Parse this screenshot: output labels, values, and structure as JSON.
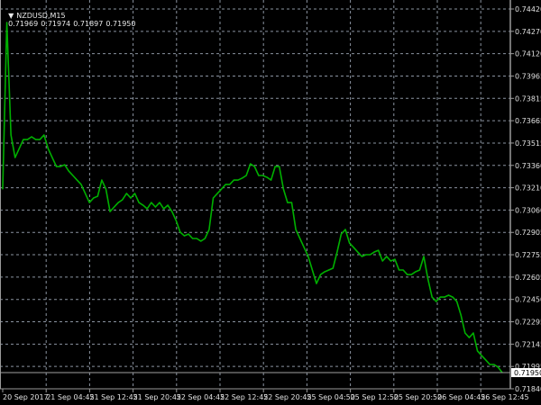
{
  "header": {
    "collapse_icon": "triangle-down-icon",
    "symbol": "NZDUSD,M15",
    "open": "0.71969",
    "high": "0.71974",
    "low": "0.71897",
    "close": "0.71950"
  },
  "colors": {
    "background": "#000000",
    "line": "#00b000",
    "grid": "#8a93a0",
    "axis": "#9a9a9a",
    "text": "#e0e0e0"
  },
  "chart_data": {
    "type": "line",
    "title": "",
    "symbol": "NZDUSD",
    "timeframe": "M15",
    "grid": true,
    "ylim": [
      0.7184,
      0.7442
    ],
    "y_ticks": [
      "0.74420",
      "0.74270",
      "0.74120",
      "0.73965",
      "0.73815",
      "0.73665",
      "0.73515",
      "0.73360",
      "0.73210",
      "0.73060",
      "0.72905",
      "0.72755",
      "0.72605",
      "0.72450",
      "0.72295",
      "0.72145",
      "0.71995",
      "0.71840"
    ],
    "x_ticks": [
      "20 Sep 2017",
      "21 Sep 04:45",
      "21 Sep 12:45",
      "21 Sep 20:45",
      "22 Sep 04:45",
      "22 Sep 12:45",
      "22 Sep 20:45",
      "25 Sep 04:50",
      "25 Sep 12:50",
      "25 Sep 20:50",
      "26 Sep 04:45",
      "26 Sep 12:45"
    ],
    "current_price": "0.71950",
    "series": [
      {
        "values": [
          0.73197,
          0.74328,
          0.73564,
          0.73411,
          0.73472,
          0.73533,
          0.73533,
          0.73552,
          0.73533,
          0.73533,
          0.73564,
          0.73472,
          0.73411,
          0.7335,
          0.7335,
          0.73362,
          0.73319,
          0.73289,
          0.73258,
          0.73228,
          0.73167,
          0.73105,
          0.73136,
          0.73148,
          0.73258,
          0.73197,
          0.73044,
          0.73075,
          0.73105,
          0.73124,
          0.73167,
          0.73136,
          0.73167,
          0.73105,
          0.73087,
          0.73063,
          0.73105,
          0.73075,
          0.73105,
          0.73063,
          0.73087,
          0.73044,
          0.72983,
          0.72904,
          0.72879,
          0.72891,
          0.72861,
          0.72861,
          0.72843,
          0.72861,
          0.72922,
          0.73136,
          0.73167,
          0.73197,
          0.73228,
          0.73228,
          0.73258,
          0.73258,
          0.73271,
          0.73289,
          0.73368,
          0.7335,
          0.73289,
          0.73289,
          0.73277,
          0.73258,
          0.7335,
          0.7335,
          0.73197,
          0.73105,
          0.73105,
          0.72922,
          0.72861,
          0.728,
          0.72739,
          0.72647,
          0.72555,
          0.72616,
          0.72635,
          0.72647,
          0.72659,
          0.72769,
          0.72891,
          0.72922,
          0.7283,
          0.728,
          0.72769,
          0.72739,
          0.72751,
          0.72751,
          0.72769,
          0.72781,
          0.72708,
          0.72739,
          0.72708,
          0.7272,
          0.72647,
          0.72647,
          0.72616,
          0.72616,
          0.72635,
          0.72647,
          0.72739,
          0.72586,
          0.72463,
          0.72433,
          0.72463,
          0.72463,
          0.72476,
          0.72463,
          0.72433,
          0.72341,
          0.72219,
          0.72188,
          0.72219,
          0.72097,
          0.72066,
          0.72036,
          0.72005,
          0.72005,
          0.71987,
          0.7195
        ]
      }
    ]
  }
}
